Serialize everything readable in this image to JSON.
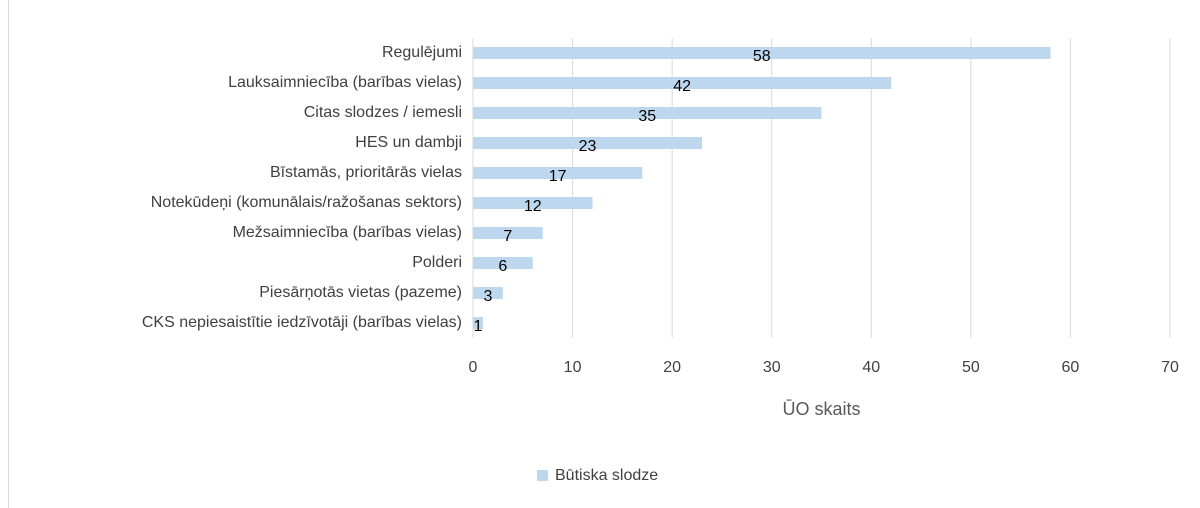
{
  "chart_data": {
    "type": "hbar",
    "categories": [
      "Regulējumi",
      "Lauksaimniecība (barības vielas)",
      "Citas slodzes / iemesli",
      "HES un dambji",
      "Bīstamās, prioritārās  vielas",
      "Notekūdeņi (komunālais/ražošanas sektors)",
      "Mežsaimniecība (barības vielas)",
      "Polderi",
      "Piesārņotās vietas (pazeme)",
      "CKS nepiesaistītie iedzīvotāji (barības vielas)"
    ],
    "series": [
      {
        "name": "Būtiska slodze",
        "color": "#bdd7ee",
        "values": [
          58,
          42,
          35,
          23,
          17,
          12,
          7,
          6,
          3,
          1
        ]
      }
    ],
    "xlabel": "ŪO skaits",
    "xlim": [
      0,
      70
    ],
    "xticks": [
      0,
      10,
      20,
      30,
      40,
      50,
      60,
      70
    ],
    "grid": true,
    "legend": "bottom"
  }
}
